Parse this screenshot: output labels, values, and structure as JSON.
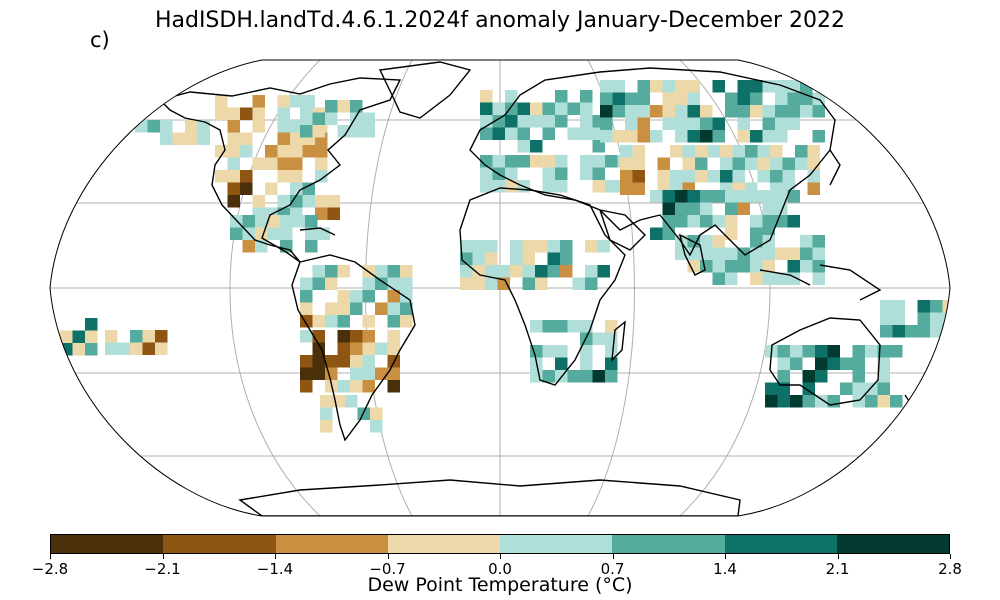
{
  "title": "HadISDH.landTd.4.6.1.2024f anomaly January-December 2022",
  "panel_label": "c)",
  "colorbar": {
    "label": "Dew Point Temperature (°C)",
    "tick_labels": [
      "−2.8",
      "−2.1",
      "−1.4",
      "−0.7",
      "0.0",
      "0.7",
      "1.4",
      "2.1",
      "2.8"
    ],
    "colors": [
      "#4a2f0b",
      "#8f5513",
      "#c99041",
      "#ecd8a8",
      "#afdfd8",
      "#55ab9d",
      "#0d7168",
      "#023a30"
    ]
  },
  "map": {
    "projection": "Robinson",
    "gridlines": true,
    "missing_color": "#ffffff",
    "coastline_color": "#000000"
  }
}
